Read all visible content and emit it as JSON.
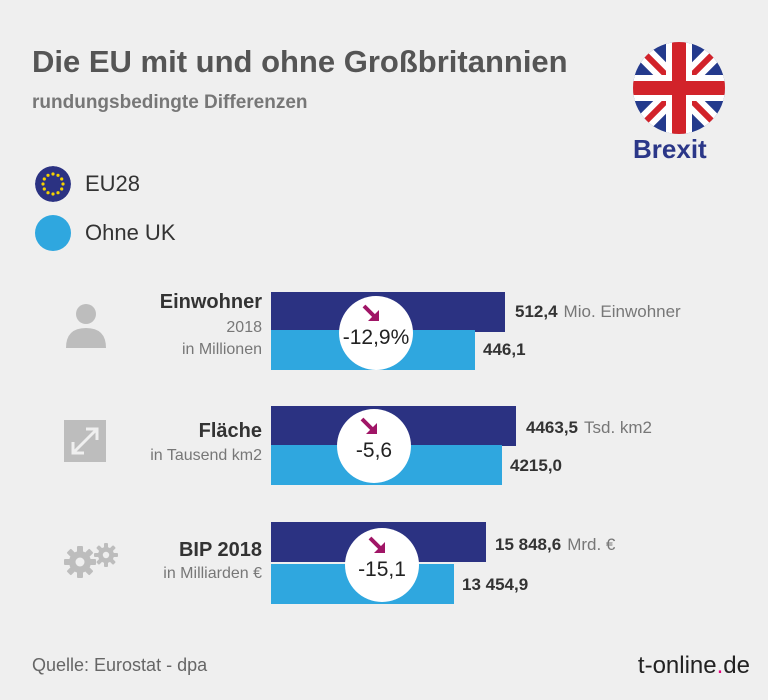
{
  "title": "Die EU mit und ohne Großbritannien",
  "subtitle": "rundungsbedingte Differenzen",
  "badge": "Brexit",
  "legend": [
    {
      "label": "EU28",
      "color": "#2b3282"
    },
    {
      "label": "Ohne UK",
      "color": "#2fa7df"
    }
  ],
  "categories": [
    {
      "title": "Einwohner",
      "sub1": "2018",
      "sub2": "in Millionen",
      "eu_value": "512,4",
      "unit": "Mio. Einwohner",
      "uk_value": "446,1",
      "change": "-12,9%",
      "icon": "person-icon"
    },
    {
      "title": "Fläche",
      "sub1": "in Tausend km2",
      "eu_value": "4463,5",
      "unit": "Tsd. km2",
      "uk_value": "4215,0",
      "change": "-5,6",
      "icon": "area-arrow-icon"
    },
    {
      "title": "BIP 2018",
      "sub1": "in Milliarden €",
      "eu_value": "15 848,6",
      "unit": "Mrd. €",
      "uk_value": "13 454,9",
      "change": "-15,1",
      "icon": "gears-icon"
    }
  ],
  "chart_data": {
    "type": "bar",
    "categories": [
      "Einwohner",
      "Fläche",
      "BIP 2018"
    ],
    "series": [
      {
        "name": "EU28",
        "values": [
          512.4,
          4463.5,
          15848.6
        ]
      },
      {
        "name": "Ohne UK",
        "values": [
          446.1,
          4215.0,
          13454.9
        ]
      }
    ],
    "change_labels": [
      "-12,9%",
      "-5,6",
      "-15,1"
    ]
  },
  "source": "Quelle: Eurostat - dpa",
  "brand_name": "t-online",
  "brand_dot": ".",
  "brand_suffix": "de"
}
